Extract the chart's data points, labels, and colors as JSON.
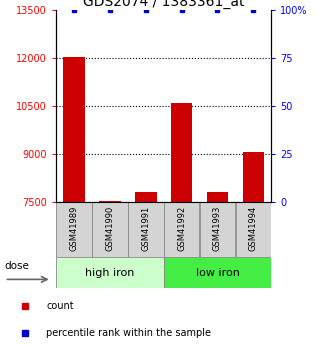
{
  "title": "GDS2074 / 1383361_at",
  "samples": [
    "GSM41989",
    "GSM41990",
    "GSM41991",
    "GSM41992",
    "GSM41993",
    "GSM41994"
  ],
  "bar_values": [
    12050,
    7530,
    7800,
    10600,
    7810,
    9050
  ],
  "percentile_values": [
    100,
    100,
    100,
    100,
    100,
    100
  ],
  "bar_color": "#cc0000",
  "percentile_color": "#0000cc",
  "ylim_left": [
    7500,
    13500
  ],
  "ylim_right": [
    0,
    100
  ],
  "yticks_left": [
    7500,
    9000,
    10500,
    12000,
    13500
  ],
  "yticks_right": [
    0,
    25,
    50,
    75,
    100
  ],
  "group_high_color": "#ccffcc",
  "group_low_color": "#44ee44",
  "dose_label": "dose",
  "legend_count_label": "count",
  "legend_pct_label": "percentile rank within the sample",
  "bar_width": 0.6,
  "title_fontsize": 10,
  "tick_fontsize": 7,
  "label_fontsize": 8
}
